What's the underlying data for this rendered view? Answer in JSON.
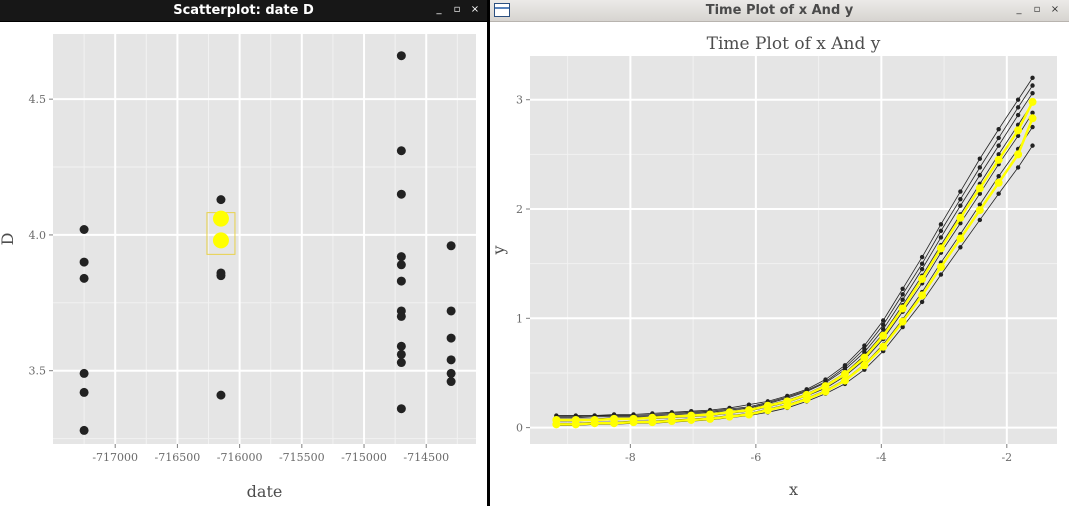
{
  "windows": {
    "left": {
      "title": "Scatterplot: date D",
      "buttons": {
        "minimize": "_",
        "maximize": "▫",
        "close": "×"
      }
    },
    "right": {
      "title": "Time Plot of x And y",
      "buttons": {
        "minimize": "_",
        "maximize": "▫",
        "close": "×"
      }
    }
  },
  "chart_data": [
    {
      "type": "scatter",
      "title": "",
      "xlabel": "date",
      "ylabel": "D",
      "xlim": [
        -717500,
        -714100
      ],
      "ylim": [
        3.23,
        4.74
      ],
      "xticks": [
        -717000,
        -716500,
        -716000,
        -715500,
        -715000,
        -714500
      ],
      "xtick_labels": [
        "-717000",
        "-716500",
        "-716000",
        "-715500",
        "-715000",
        "-714500"
      ],
      "yticks": [
        3.5,
        4.0,
        4.5
      ],
      "ytick_labels": [
        "3.5",
        "4.0",
        "4.5"
      ],
      "grid": true,
      "point_color": "#222222",
      "highlight_color": "#ffff00",
      "points": [
        {
          "x": -717250,
          "y": 4.02
        },
        {
          "x": -717250,
          "y": 3.9
        },
        {
          "x": -717250,
          "y": 3.84
        },
        {
          "x": -717250,
          "y": 3.49
        },
        {
          "x": -717250,
          "y": 3.42
        },
        {
          "x": -717250,
          "y": 3.28
        },
        {
          "x": -716150,
          "y": 4.13
        },
        {
          "x": -716150,
          "y": 3.86
        },
        {
          "x": -716150,
          "y": 3.85
        },
        {
          "x": -716150,
          "y": 3.41
        },
        {
          "x": -714700,
          "y": 4.66
        },
        {
          "x": -714700,
          "y": 4.31
        },
        {
          "x": -714700,
          "y": 4.15
        },
        {
          "x": -714700,
          "y": 3.92
        },
        {
          "x": -714700,
          "y": 3.89
        },
        {
          "x": -714700,
          "y": 3.83
        },
        {
          "x": -714700,
          "y": 3.72
        },
        {
          "x": -714700,
          "y": 3.7
        },
        {
          "x": -714700,
          "y": 3.59
        },
        {
          "x": -714700,
          "y": 3.56
        },
        {
          "x": -714700,
          "y": 3.53
        },
        {
          "x": -714700,
          "y": 3.36
        },
        {
          "x": -714300,
          "y": 3.96
        },
        {
          "x": -714300,
          "y": 3.72
        },
        {
          "x": -714300,
          "y": 3.62
        },
        {
          "x": -714300,
          "y": 3.54
        },
        {
          "x": -714300,
          "y": 3.49
        },
        {
          "x": -714300,
          "y": 3.46
        }
      ],
      "highlighted": [
        {
          "x": -716150,
          "y": 4.06
        },
        {
          "x": -716150,
          "y": 3.98
        }
      ]
    },
    {
      "type": "line",
      "title": "Time Plot of x And y",
      "xlabel": "x",
      "ylabel": "y",
      "xlim": [
        -9.6,
        -1.2
      ],
      "ylim": [
        -0.15,
        3.4
      ],
      "xticks": [
        -8,
        -6,
        -4,
        -2
      ],
      "xtick_labels": [
        "-8",
        "-6",
        "-4",
        "-2"
      ],
      "yticks": [
        0,
        1,
        2,
        3
      ],
      "ytick_labels": [
        "0",
        "1",
        "2",
        "3"
      ],
      "grid": true,
      "x": [
        -9.18,
        -8.87,
        -8.57,
        -8.26,
        -7.95,
        -7.65,
        -7.34,
        -7.03,
        -6.73,
        -6.42,
        -6.11,
        -5.81,
        -5.5,
        -5.19,
        -4.89,
        -4.58,
        -4.27,
        -3.97,
        -3.66,
        -3.35,
        -3.05,
        -2.74,
        -2.43,
        -2.13,
        -1.82,
        -1.59
      ],
      "series": [
        {
          "color": "#222222",
          "values": [
            0.11,
            0.11,
            0.11,
            0.12,
            0.12,
            0.13,
            0.14,
            0.15,
            0.16,
            0.18,
            0.21,
            0.24,
            0.29,
            0.35,
            0.44,
            0.57,
            0.75,
            0.98,
            1.27,
            1.56,
            1.86,
            2.16,
            2.46,
            2.73,
            3.0,
            3.2
          ]
        },
        {
          "color": "#222222",
          "values": [
            0.1,
            0.1,
            0.11,
            0.11,
            0.11,
            0.12,
            0.13,
            0.14,
            0.15,
            0.17,
            0.19,
            0.23,
            0.28,
            0.34,
            0.42,
            0.55,
            0.72,
            0.94,
            1.22,
            1.5,
            1.8,
            2.09,
            2.38,
            2.65,
            2.93,
            3.13
          ]
        },
        {
          "color": "#222222",
          "values": [
            0.09,
            0.09,
            0.1,
            0.1,
            0.1,
            0.11,
            0.12,
            0.13,
            0.14,
            0.16,
            0.18,
            0.22,
            0.27,
            0.33,
            0.41,
            0.53,
            0.69,
            0.9,
            1.17,
            1.45,
            1.74,
            2.03,
            2.31,
            2.58,
            2.86,
            3.06
          ]
        },
        {
          "color": "#222222",
          "values": [
            0.08,
            0.08,
            0.08,
            0.09,
            0.09,
            0.1,
            0.11,
            0.12,
            0.13,
            0.15,
            0.17,
            0.21,
            0.25,
            0.31,
            0.39,
            0.5,
            0.66,
            0.86,
            1.12,
            1.39,
            1.67,
            1.95,
            2.23,
            2.5,
            2.77,
            2.97
          ]
        },
        {
          "color": "#222222",
          "values": [
            0.06,
            0.06,
            0.07,
            0.07,
            0.08,
            0.08,
            0.09,
            0.1,
            0.11,
            0.13,
            0.15,
            0.19,
            0.23,
            0.29,
            0.36,
            0.47,
            0.62,
            0.81,
            1.06,
            1.32,
            1.6,
            1.87,
            2.14,
            2.41,
            2.67,
            2.88
          ]
        },
        {
          "color": "#222222",
          "values": [
            0.04,
            0.04,
            0.05,
            0.05,
            0.06,
            0.06,
            0.07,
            0.08,
            0.09,
            0.11,
            0.13,
            0.17,
            0.21,
            0.27,
            0.34,
            0.44,
            0.58,
            0.76,
            0.99,
            1.24,
            1.51,
            1.77,
            2.04,
            2.3,
            2.55,
            2.75
          ]
        },
        {
          "color": "#222222",
          "values": [
            0.02,
            0.02,
            0.03,
            0.03,
            0.04,
            0.04,
            0.05,
            0.06,
            0.07,
            0.09,
            0.11,
            0.14,
            0.18,
            0.24,
            0.31,
            0.4,
            0.53,
            0.7,
            0.92,
            1.15,
            1.4,
            1.65,
            1.9,
            2.14,
            2.38,
            2.58
          ]
        },
        {
          "color": "#ffff00",
          "values": [
            0.07,
            0.07,
            0.07,
            0.08,
            0.08,
            0.09,
            0.1,
            0.11,
            0.12,
            0.14,
            0.16,
            0.2,
            0.24,
            0.3,
            0.38,
            0.49,
            0.64,
            0.84,
            1.09,
            1.36,
            1.64,
            1.92,
            2.19,
            2.45,
            2.72,
            2.98
          ]
        },
        {
          "color": "#ffff00",
          "values": [
            0.03,
            0.03,
            0.04,
            0.04,
            0.05,
            0.05,
            0.06,
            0.07,
            0.08,
            0.1,
            0.12,
            0.16,
            0.2,
            0.26,
            0.33,
            0.43,
            0.57,
            0.74,
            0.97,
            1.21,
            1.47,
            1.73,
            1.99,
            2.24,
            2.5,
            2.83
          ]
        }
      ]
    }
  ]
}
